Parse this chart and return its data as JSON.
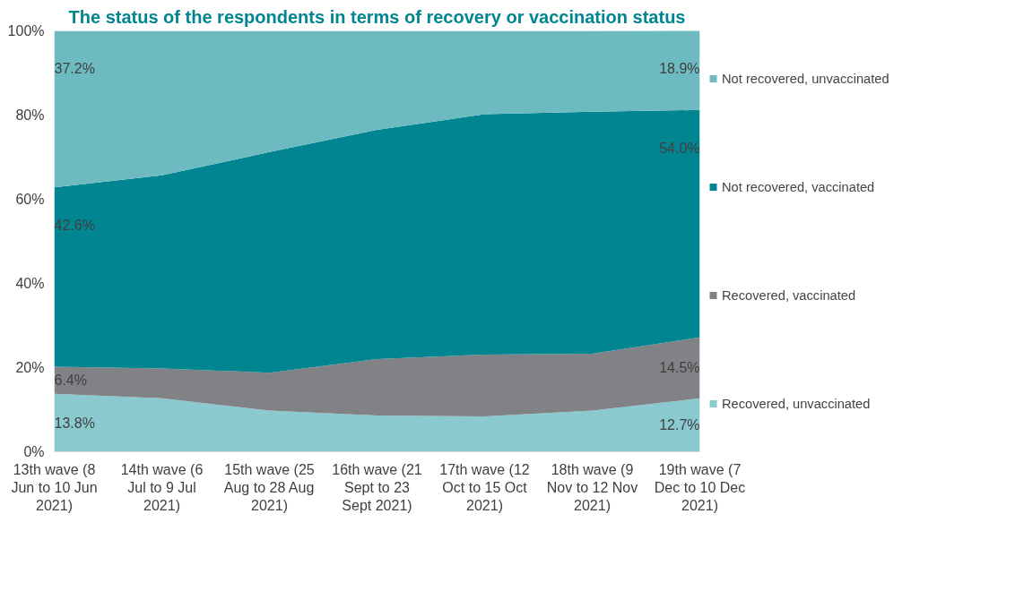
{
  "chart_data": {
    "type": "area",
    "stacked": true,
    "title": "The status of the respondents in terms of recovery or vaccination status",
    "categories": [
      "13th wave (8 Jun to 10 Jun 2021)",
      "14th wave (6 Jul to 9 Jul 2021)",
      "15th wave (25 Aug to 28 Aug 2021)",
      "16th wave (21 Sept to 23 Sept 2021)",
      "17th wave (12 Oct to 15 Oct 2021)",
      "18th wave (9 Nov to 12 Nov 2021)",
      "19th wave (7 Dec to 10 Dec 2021)"
    ],
    "series": [
      {
        "name": "Recovered, unvaccinated",
        "color": "#8ac9ce",
        "values": [
          13.8,
          12.7,
          9.8,
          8.6,
          8.4,
          9.8,
          12.7
        ],
        "value_labels": [
          "13.8%",
          null,
          null,
          null,
          null,
          null,
          "12.7%"
        ]
      },
      {
        "name": "Recovered, vaccinated",
        "color": "#808285",
        "values": [
          6.4,
          7.1,
          9.0,
          13.4,
          14.7,
          13.5,
          14.5
        ],
        "value_labels": [
          "6.4%",
          null,
          null,
          null,
          null,
          null,
          "14.5%"
        ]
      },
      {
        "name": "Not recovered, vaccinated",
        "color": "#008591",
        "values": [
          42.6,
          45.9,
          52.4,
          54.5,
          57.1,
          57.5,
          54.0
        ],
        "value_labels": [
          "42.6%",
          null,
          null,
          null,
          null,
          null,
          "54.0%"
        ]
      },
      {
        "name": "Not recovered, unvaccinated",
        "color": "#6dbbc1",
        "values": [
          37.2,
          34.3,
          28.8,
          23.5,
          19.8,
          19.2,
          18.9
        ],
        "value_labels": [
          "37.2%",
          null,
          null,
          null,
          null,
          null,
          "18.9%"
        ]
      }
    ],
    "ylim": [
      0,
      100
    ],
    "yticks": [
      {
        "value": 0,
        "label": "0%"
      },
      {
        "value": 20,
        "label": "20%"
      },
      {
        "value": 40,
        "label": "40%"
      },
      {
        "value": 60,
        "label": "60%"
      },
      {
        "value": 80,
        "label": "80%"
      },
      {
        "value": 100,
        "label": "100%"
      }
    ],
    "grid": false,
    "legend": "right"
  }
}
